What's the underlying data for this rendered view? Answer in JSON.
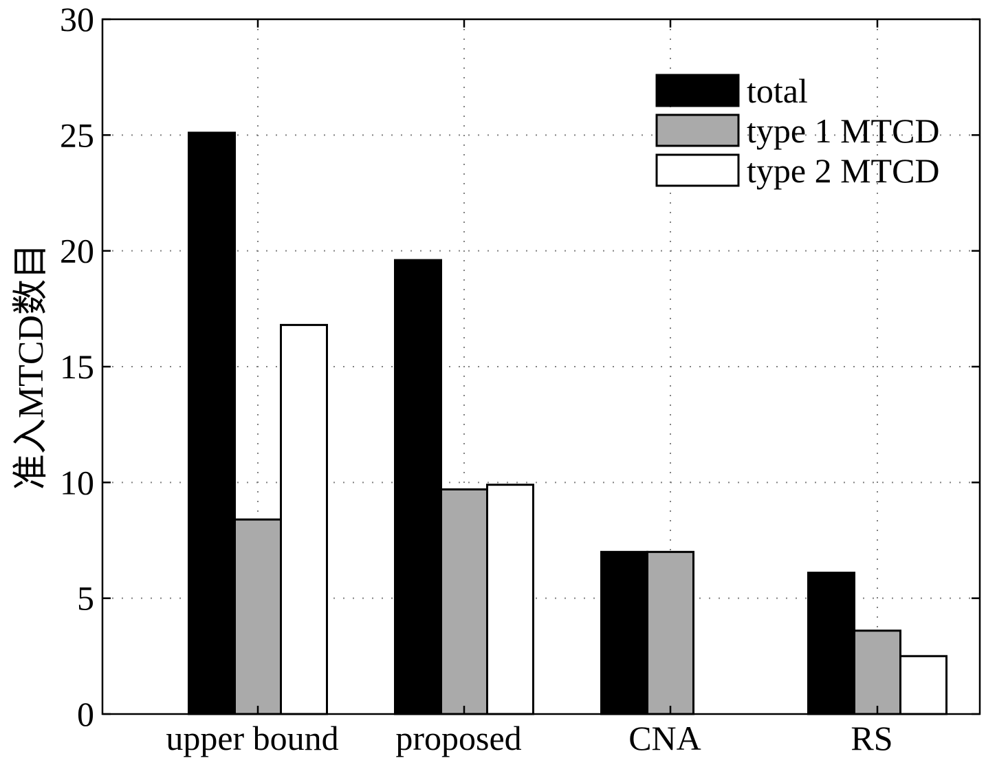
{
  "colors": {
    "total": "#000000",
    "type1": "#aaaaaa",
    "type2": "#ffffff",
    "axis": "#000000",
    "grid": "#808080"
  },
  "chart_data": {
    "type": "bar",
    "title": "",
    "xlabel": "",
    "ylabel": "准入MTCD数目",
    "categories": [
      "upper bound",
      "proposed",
      "CNA",
      "RS"
    ],
    "series": [
      {
        "name": "total",
        "values": [
          25.1,
          19.6,
          7.0,
          6.1
        ]
      },
      {
        "name": "type 1 MTCD",
        "values": [
          8.4,
          9.7,
          7.0,
          3.6
        ]
      },
      {
        "name": "type 2 MTCD",
        "values": [
          16.8,
          9.9,
          0.0,
          2.5
        ]
      }
    ],
    "ylim": [
      0,
      30
    ],
    "yticks": [
      0,
      5,
      10,
      15,
      20,
      25,
      30
    ],
    "grid": "dotted",
    "legend_position": "top-right"
  }
}
